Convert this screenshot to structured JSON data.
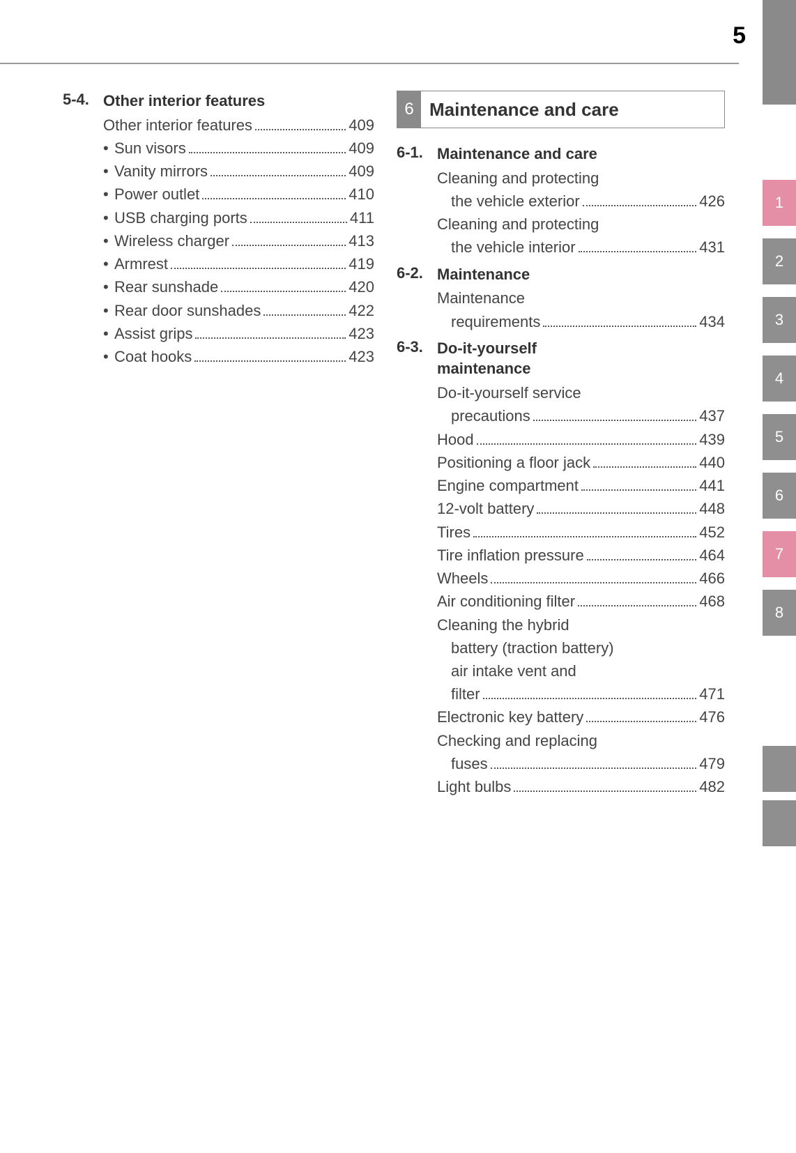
{
  "page_number": "5",
  "colors": {
    "gray_tab": "#8f8f8f",
    "pink_tab": "#e58fa6",
    "text": "#3a3a3a",
    "rule": "#999999"
  },
  "typography": {
    "body_fontsize_pt": 16,
    "heading_fontsize_pt": 18
  },
  "left": {
    "section_num": "5-4.",
    "section_title": "Other interior features",
    "entries": [
      {
        "label": "Other interior features",
        "page": "409",
        "bullet": false
      },
      {
        "label": "Sun visors",
        "page": "409",
        "bullet": true
      },
      {
        "label": "Vanity mirrors",
        "page": "409",
        "bullet": true
      },
      {
        "label": "Power outlet",
        "page": "410",
        "bullet": true
      },
      {
        "label": "USB charging ports",
        "page": "411",
        "bullet": true
      },
      {
        "label": "Wireless charger",
        "page": "413",
        "bullet": true
      },
      {
        "label": "Armrest",
        "page": "419",
        "bullet": true
      },
      {
        "label": "Rear sunshade",
        "page": "420",
        "bullet": true
      },
      {
        "label": "Rear door sunshades",
        "page": "422",
        "bullet": true
      },
      {
        "label": "Assist grips",
        "page": "423",
        "bullet": true
      },
      {
        "label": "Coat hooks",
        "page": "423",
        "bullet": true
      }
    ]
  },
  "right": {
    "band_num": "6",
    "band_title": "Maintenance and care",
    "subs": [
      {
        "num": "6-1.",
        "title": "Maintenance and care",
        "entries": [
          {
            "label": "Cleaning and protecting",
            "cont": "the vehicle exterior",
            "page": "426"
          },
          {
            "label": "Cleaning and protecting",
            "cont": "the vehicle interior",
            "page": "431"
          }
        ]
      },
      {
        "num": "6-2.",
        "title": "Maintenance",
        "entries": [
          {
            "label": "Maintenance",
            "cont": "requirements",
            "page": "434"
          }
        ]
      },
      {
        "num": "6-3.",
        "title": "Do-it-yourself maintenance",
        "title_lines": [
          "Do-it-yourself",
          "maintenance"
        ],
        "entries": [
          {
            "label": "Do-it-yourself service",
            "cont": "precautions",
            "page": "437"
          },
          {
            "label": "Hood",
            "page": "439"
          },
          {
            "label": "Positioning a floor jack",
            "page": "440"
          },
          {
            "label": "Engine compartment",
            "page": "441"
          },
          {
            "label": "12-volt battery",
            "page": "448"
          },
          {
            "label": "Tires",
            "page": "452"
          },
          {
            "label": "Tire inflation pressure",
            "page": "464"
          },
          {
            "label": "Wheels",
            "page": "466"
          },
          {
            "label": "Air conditioning filter",
            "page": "468"
          },
          {
            "label": "Cleaning the hybrid",
            "cont": "battery (traction battery) air intake vent and filter",
            "cont_lines": [
              "battery (traction battery)",
              "air intake vent and",
              "filter"
            ],
            "page": "471"
          },
          {
            "label": "Electronic key battery",
            "page": "476"
          },
          {
            "label": "Checking and replacing",
            "cont": "fuses",
            "page": "479"
          },
          {
            "label": "Light bulbs",
            "page": "482"
          }
        ]
      }
    ]
  },
  "side_tabs": [
    {
      "n": "1",
      "style": "pink"
    },
    {
      "n": "2",
      "style": "gray"
    },
    {
      "n": "3",
      "style": "gray"
    },
    {
      "n": "4",
      "style": "gray"
    },
    {
      "n": "5",
      "style": "gray"
    },
    {
      "n": "6",
      "style": "gray"
    },
    {
      "n": "7",
      "style": "pink"
    },
    {
      "n": "8",
      "style": "gray"
    }
  ]
}
